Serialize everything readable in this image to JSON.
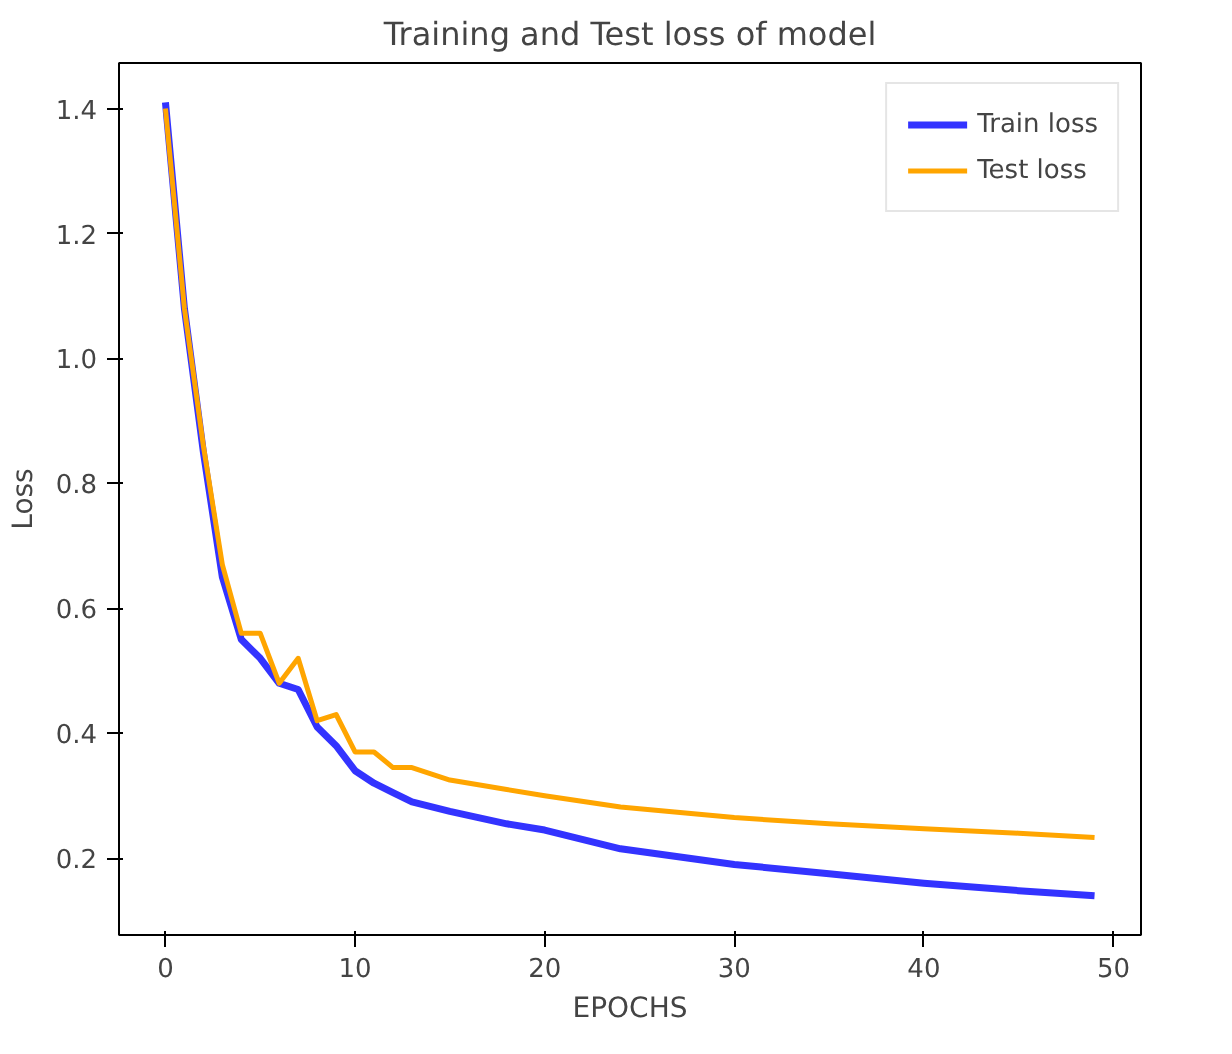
{
  "chart_data": {
    "type": "line",
    "title": "Training and Test loss of model",
    "xlabel": "EPOCHS",
    "ylabel": "Loss",
    "xlim": [
      -2.45,
      51.45
    ],
    "ylim": [
      0.077,
      1.473
    ],
    "xticks": [
      0,
      10,
      20,
      30,
      40,
      50
    ],
    "yticks": [
      0.2,
      0.4,
      0.6,
      0.8,
      {
        "value": 1,
        "label": "1.0"
      },
      1.2,
      1.4
    ],
    "legend": "top right",
    "grid": false,
    "series": [
      {
        "name": "Train loss",
        "color": "#3333ff",
        "x": [
          0,
          1,
          2,
          3,
          4,
          5,
          6,
          7,
          8,
          9,
          10,
          11,
          12,
          13,
          15,
          18,
          20,
          24,
          30,
          35,
          40,
          45,
          49
        ],
        "values": [
          1.41,
          1.08,
          0.85,
          0.65,
          0.55,
          0.52,
          0.48,
          0.47,
          0.41,
          0.38,
          0.34,
          0.32,
          0.305,
          0.29,
          0.275,
          0.255,
          0.245,
          0.215,
          0.19,
          0.175,
          0.16,
          0.148,
          0.14
        ]
      },
      {
        "name": "Test loss",
        "color": "#ffa500",
        "x": [
          0,
          1,
          2,
          3,
          4,
          5,
          6,
          7,
          8,
          9,
          10,
          11,
          12,
          13,
          14,
          15,
          18,
          20,
          24,
          30,
          35,
          40,
          45,
          49
        ],
        "values": [
          1.4,
          1.08,
          0.86,
          0.67,
          0.56,
          0.56,
          0.48,
          0.52,
          0.42,
          0.43,
          0.37,
          0.37,
          0.345,
          0.345,
          0.335,
          0.325,
          0.31,
          0.3,
          0.282,
          0.265,
          0.255,
          0.247,
          0.24,
          0.233
        ]
      }
    ]
  }
}
